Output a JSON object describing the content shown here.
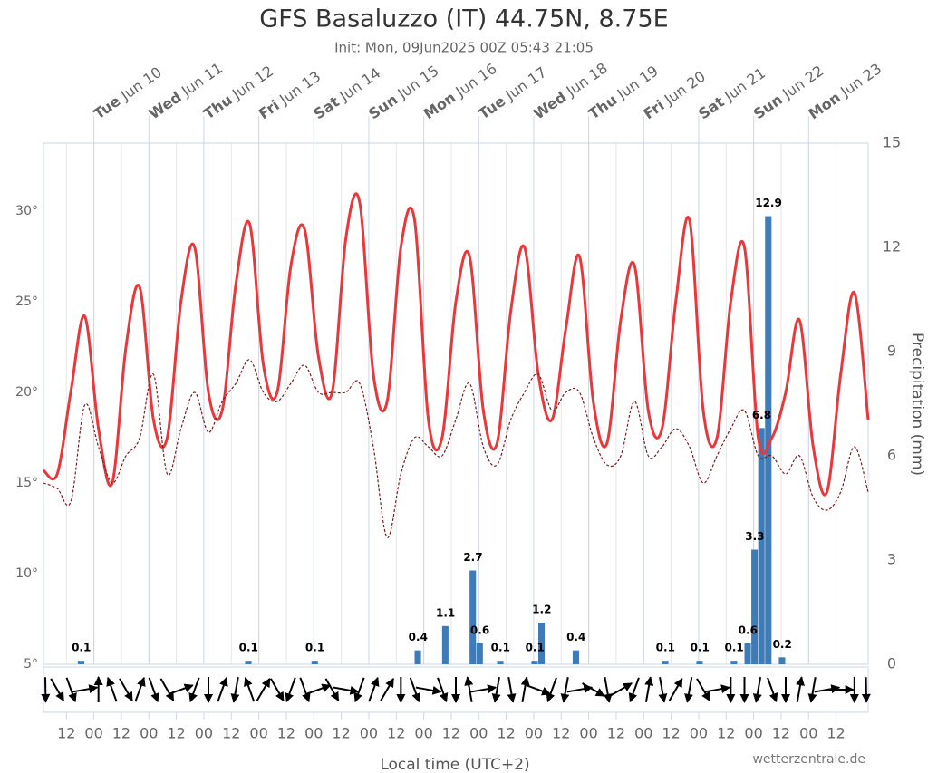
{
  "chart_data": {
    "type": "line",
    "title": "GFS Basaluzzo (IT) 44.75N, 8.75E",
    "subtitle": "Init: Mon, 09Jun2025 00Z 05:43 21:05",
    "x": [
      "2025-06-09T02:00",
      "2025-06-09T08:00",
      "2025-06-09T14:00",
      "2025-06-09T20:00",
      "2025-06-10T02:00",
      "2025-06-10T08:00",
      "2025-06-10T14:00",
      "2025-06-10T20:00",
      "2025-06-11T02:00",
      "2025-06-11T08:00",
      "2025-06-11T14:00",
      "2025-06-11T20:00",
      "2025-06-12T02:00",
      "2025-06-12T08:00",
      "2025-06-12T14:00",
      "2025-06-12T20:00",
      "2025-06-13T02:00",
      "2025-06-13T08:00",
      "2025-06-13T14:00",
      "2025-06-13T20:00",
      "2025-06-14T02:00",
      "2025-06-14T08:00",
      "2025-06-14T14:00",
      "2025-06-14T20:00",
      "2025-06-15T02:00",
      "2025-06-15T08:00",
      "2025-06-15T14:00",
      "2025-06-15T20:00",
      "2025-06-16T02:00",
      "2025-06-16T08:00",
      "2025-06-16T14:00",
      "2025-06-16T20:00",
      "2025-06-17T02:00",
      "2025-06-17T08:00",
      "2025-06-17T14:00",
      "2025-06-17T20:00",
      "2025-06-18T02:00",
      "2025-06-18T08:00",
      "2025-06-18T14:00",
      "2025-06-18T20:00",
      "2025-06-19T02:00",
      "2025-06-19T08:00",
      "2025-06-19T14:00",
      "2025-06-19T20:00",
      "2025-06-20T02:00",
      "2025-06-20T08:00",
      "2025-06-20T14:00",
      "2025-06-20T20:00",
      "2025-06-21T02:00",
      "2025-06-21T08:00",
      "2025-06-21T14:00",
      "2025-06-21T20:00",
      "2025-06-22T02:00",
      "2025-06-22T08:00",
      "2025-06-22T14:00",
      "2025-06-22T20:00",
      "2025-06-23T02:00",
      "2025-06-23T08:00",
      "2025-06-23T14:00",
      "2025-06-23T20:00",
      "2025-06-24T02:00"
    ],
    "xlim": [
      "2025-06-09T02:00",
      "2025-06-24T02:00"
    ],
    "series": [
      {
        "color": "#e8383b",
        "dashed": false,
        "values": [
          15.7,
          15.5,
          20.1,
          24.2,
          18,
          15,
          22.5,
          25.8,
          18.5,
          17.5,
          25,
          28,
          20,
          19,
          26,
          29.3,
          21.5,
          20,
          27,
          29,
          22,
          20,
          28.5,
          30.5,
          21,
          19.5,
          28,
          29.5,
          18.5,
          17.5,
          25,
          27.5,
          19,
          17.2,
          24.5,
          28,
          21,
          18.5,
          23.5,
          27.5,
          19.5,
          17.2,
          24,
          27,
          19,
          18,
          25,
          29.5,
          19,
          17.5,
          25,
          28,
          17.5,
          17.5,
          20,
          24,
          17,
          14.5,
          21,
          25.5,
          18.5
        ]
      },
      {
        "color": "#7a1f1f",
        "dashed": true,
        "values": [
          15,
          14.7,
          14,
          19.3,
          17,
          15,
          16.5,
          17.5,
          21,
          15.5,
          18,
          20,
          17.8,
          19.5,
          20.5,
          21.8,
          20,
          19.5,
          20.5,
          21.5,
          20,
          20,
          20,
          20.5,
          17,
          12,
          15.5,
          17.5,
          17,
          16.5,
          18.5,
          20.5,
          17,
          16,
          18.5,
          20,
          21,
          19,
          20,
          20,
          17.5,
          16,
          16.5,
          19.5,
          16.5,
          17,
          18,
          17,
          15,
          16.5,
          18,
          19,
          16.5,
          16.5,
          15.5,
          16.5,
          14.2,
          13.5,
          14.5,
          17,
          14.5
        ]
      }
    ],
    "precipitation": {
      "type": "bar",
      "axis": "y2",
      "color": "#3f7bb6",
      "x": [
        "2025-06-09T17:00",
        "2025-06-12T18:00",
        "2025-06-13T23:00",
        "2025-06-15T20:00",
        "2025-06-16T08:00",
        "2025-06-16T20:00",
        "2025-06-16T23:00",
        "2025-06-17T08:00",
        "2025-06-17T23:00",
        "2025-06-18T02:00",
        "2025-06-18T17:00",
        "2025-06-20T08:00",
        "2025-06-20T23:00",
        "2025-06-21T14:00",
        "2025-06-21T20:00",
        "2025-06-21T23:00",
        "2025-06-22T02:00",
        "2025-06-22T05:00",
        "2025-06-22T11:00"
      ],
      "values": [
        0.1,
        0.1,
        0.1,
        0.4,
        1.1,
        2.7,
        0.6,
        0.1,
        0.1,
        1.2,
        0.4,
        0.1,
        0.1,
        0.1,
        0.6,
        3.3,
        6.8,
        12.9,
        0.2
      ]
    },
    "wind_direction": [
      170,
      150,
      160,
      80,
      0,
      340,
      150,
      20,
      160,
      150,
      70,
      200,
      180,
      20,
      190,
      340,
      30,
      150,
      200,
      160,
      70,
      150,
      100,
      200,
      20,
      30,
      180,
      160,
      100,
      160,
      180,
      350,
      80,
      190,
      170,
      10,
      110,
      200,
      190,
      80,
      120,
      170,
      60,
      200,
      10,
      170,
      30,
      190,
      150,
      80,
      180,
      180,
      190,
      160,
      180,
      10,
      190,
      80,
      90,
      180,
      170
    ],
    "ylim": [
      5,
      33.75
    ],
    "yticks": [
      {
        "value": 5,
        "label": "5°"
      },
      {
        "value": 10,
        "label": "10°"
      },
      {
        "value": 15,
        "label": "15°"
      },
      {
        "value": 20,
        "label": "20°"
      },
      {
        "value": 25,
        "label": "25°"
      },
      {
        "value": 30,
        "label": "30°"
      }
    ],
    "y2lim": [
      0,
      15
    ],
    "y2ticks": [
      0,
      3,
      6,
      9,
      12,
      15
    ],
    "y2label": "Precipitation (mm)",
    "xlabel": "Local time (UTC+2)",
    "credit": "wetterzentrale.de",
    "day_ticks": [
      {
        "value": "2025-06-10T00:00",
        "weekday": "Tue",
        "date": "Jun 10"
      },
      {
        "value": "2025-06-11T00:00",
        "weekday": "Wed",
        "date": "Jun 11"
      },
      {
        "value": "2025-06-12T00:00",
        "weekday": "Thu",
        "date": "Jun 12"
      },
      {
        "value": "2025-06-13T00:00",
        "weekday": "Fri",
        "date": "Jun 13"
      },
      {
        "value": "2025-06-14T00:00",
        "weekday": "Sat",
        "date": "Jun 14"
      },
      {
        "value": "2025-06-15T00:00",
        "weekday": "Sun",
        "date": "Jun 15"
      },
      {
        "value": "2025-06-16T00:00",
        "weekday": "Mon",
        "date": "Jun 16"
      },
      {
        "value": "2025-06-17T00:00",
        "weekday": "Tue",
        "date": "Jun 17"
      },
      {
        "value": "2025-06-18T00:00",
        "weekday": "Wed",
        "date": "Jun 18"
      },
      {
        "value": "2025-06-19T00:00",
        "weekday": "Thu",
        "date": "Jun 19"
      },
      {
        "value": "2025-06-20T00:00",
        "weekday": "Fri",
        "date": "Jun 20"
      },
      {
        "value": "2025-06-21T00:00",
        "weekday": "Sat",
        "date": "Jun 21"
      },
      {
        "value": "2025-06-22T00:00",
        "weekday": "Sun",
        "date": "Jun 22"
      },
      {
        "value": "2025-06-23T00:00",
        "weekday": "Mon",
        "date": "Jun 23"
      }
    ],
    "xticks": [
      {
        "value": "2025-06-09T12:00",
        "label": "12"
      },
      {
        "value": "2025-06-10T00:00",
        "label": "00"
      },
      {
        "value": "2025-06-10T12:00",
        "label": "12"
      },
      {
        "value": "2025-06-11T00:00",
        "label": "00"
      },
      {
        "value": "2025-06-11T12:00",
        "label": "12"
      },
      {
        "value": "2025-06-12T00:00",
        "label": "00"
      },
      {
        "value": "2025-06-12T12:00",
        "label": "12"
      },
      {
        "value": "2025-06-13T00:00",
        "label": "00"
      },
      {
        "value": "2025-06-13T12:00",
        "label": "12"
      },
      {
        "value": "2025-06-14T00:00",
        "label": "00"
      },
      {
        "value": "2025-06-14T12:00",
        "label": "12"
      },
      {
        "value": "2025-06-15T00:00",
        "label": "00"
      },
      {
        "value": "2025-06-15T12:00",
        "label": "12"
      },
      {
        "value": "2025-06-16T00:00",
        "label": "00"
      },
      {
        "value": "2025-06-16T12:00",
        "label": "12"
      },
      {
        "value": "2025-06-17T00:00",
        "label": "00"
      },
      {
        "value": "2025-06-17T12:00",
        "label": "12"
      },
      {
        "value": "2025-06-18T00:00",
        "label": "00"
      },
      {
        "value": "2025-06-18T12:00",
        "label": "12"
      },
      {
        "value": "2025-06-19T00:00",
        "label": "00"
      },
      {
        "value": "2025-06-19T12:00",
        "label": "12"
      },
      {
        "value": "2025-06-20T00:00",
        "label": "00"
      },
      {
        "value": "2025-06-20T12:00",
        "label": "12"
      },
      {
        "value": "2025-06-21T00:00",
        "label": "00"
      },
      {
        "value": "2025-06-21T12:00",
        "label": "12"
      },
      {
        "value": "2025-06-22T00:00",
        "label": "00"
      },
      {
        "value": "2025-06-22T12:00",
        "label": "12"
      },
      {
        "value": "2025-06-23T00:00",
        "label": "00"
      },
      {
        "value": "2025-06-23T12:00",
        "label": "12"
      }
    ]
  }
}
